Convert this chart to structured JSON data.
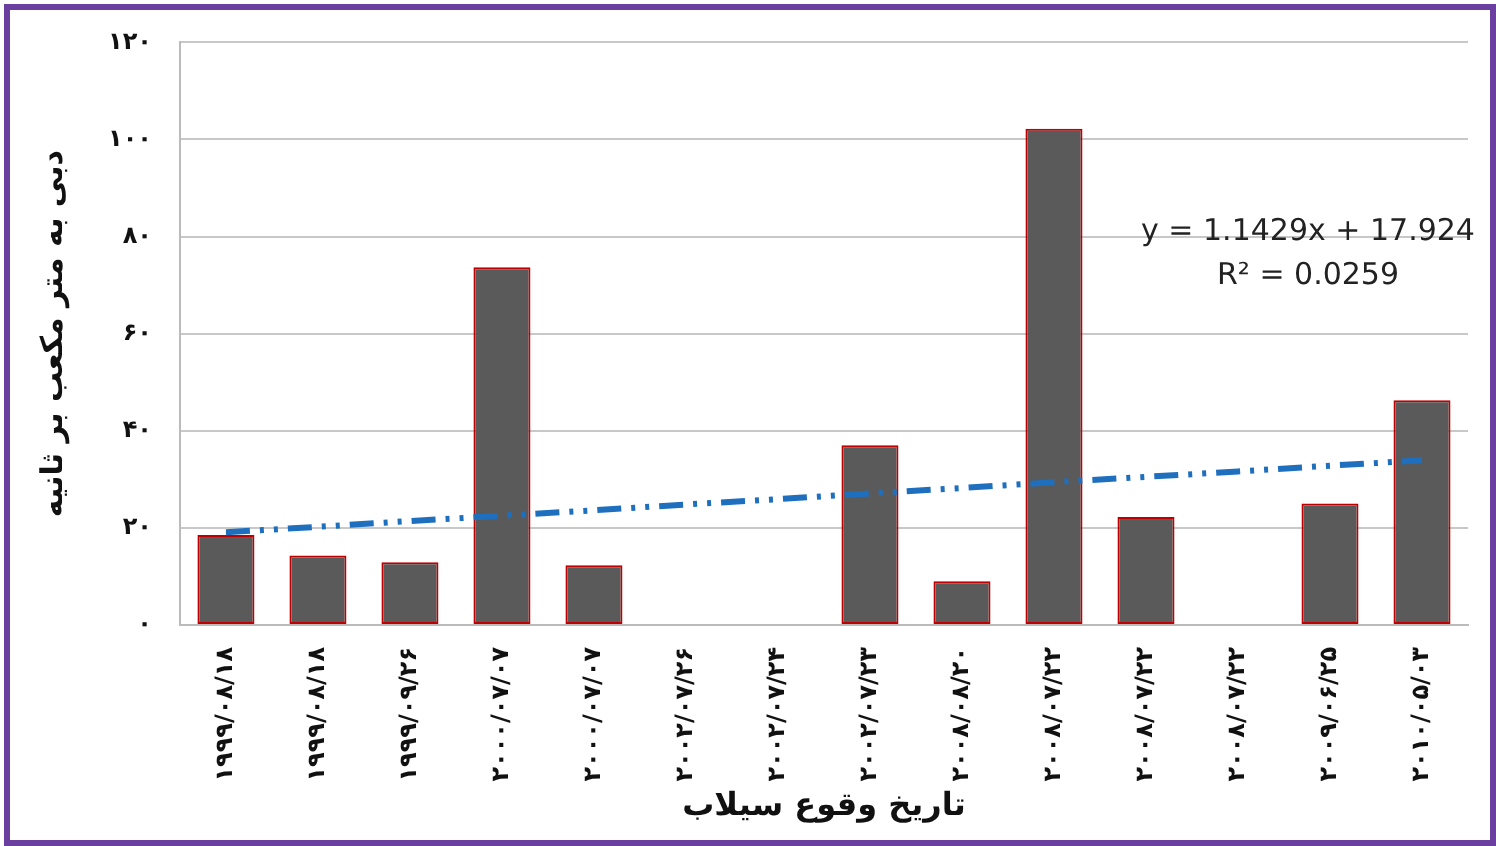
{
  "chart_data": {
    "type": "bar",
    "xlabel": "تاریخ وقوع سیلاب",
    "ylabel": "دبی به متر مکعب بر ثانیه",
    "categories": [
      "۱۹۹۹/۰۸/۱۸",
      "۱۹۹۹/۰۸/۱۸",
      "۱۹۹۹/۰۹/۲۶",
      "۲۰۰۰/۰۷/۰۷",
      "۲۰۰۰/۰۷/۰۷",
      "۲۰۰۲/۰۷/۲۶",
      "۲۰۰۲/۰۷/۲۴",
      "۲۰۰۲/۰۷/۲۳",
      "۲۰۰۸/۰۸/۲۰",
      "۲۰۰۸/۰۷/۲۲",
      "۲۰۰۸/۰۷/۲۲",
      "۲۰۰۸/۰۷/۲۲",
      "۲۰۰۹/۰۶/۲۵",
      "۲۰۱۰/۰۵/۰۳"
    ],
    "series": [
      {
        "color": "#5a5a5a",
        "values": [
          18.5,
          14.3,
          12.9,
          73.7,
          12.3,
          0,
          0,
          37,
          9,
          102.2,
          22.2,
          0,
          25,
          46.3
        ]
      },
      {
        "type": "line",
        "color": "#1f6fbf",
        "line_style": "dashed",
        "marker": "none",
        "values": [
          19.1,
          20.2,
          21.4,
          22.5,
          23.6,
          24.8,
          25.9,
          27.1,
          28.2,
          29.4,
          30.5,
          31.6,
          32.8,
          33.9
        ]
      }
    ],
    "ylim": [
      0,
      120
    ],
    "yticks": [
      {
        "value": 0,
        "label": "۰"
      },
      {
        "value": 20,
        "label": "۲۰"
      },
      {
        "value": 40,
        "label": "۴۰"
      },
      {
        "value": 60,
        "label": "۶۰"
      },
      {
        "value": 80,
        "label": "۸۰"
      },
      {
        "value": 100,
        "label": "۱۰۰"
      },
      {
        "value": 120,
        "label": "۱۲۰"
      }
    ],
    "grid": "y",
    "legend": false,
    "annotations": [
      "y = 1.1429x + 17.924",
      "R² = 0.0259"
    ]
  }
}
